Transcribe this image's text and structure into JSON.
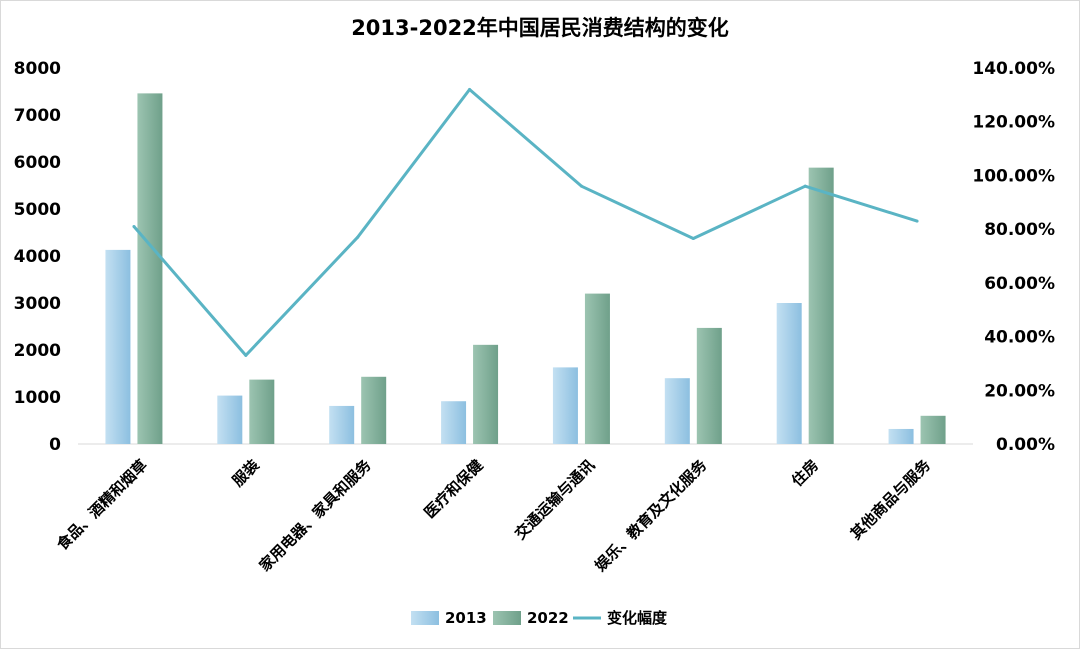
{
  "chart_data": {
    "type": "bar",
    "title": "2013-2022年中国居民消费结构的变化",
    "categories": [
      "食品、酒精和烟草",
      "服装",
      "家用电器、家具和服务",
      "医疗和保健",
      "交通运输与通讯",
      "娱乐、教育及文化服务",
      "住房",
      "其他商品与服务"
    ],
    "series": [
      {
        "name": "2013",
        "type": "bar",
        "axis": "left",
        "color": "#9dc9e6",
        "values": [
          4130,
          1030,
          810,
          910,
          1630,
          1400,
          3000,
          320
        ]
      },
      {
        "name": "2022",
        "type": "bar",
        "axis": "left",
        "color": "#7fae98",
        "values": [
          7460,
          1370,
          1430,
          2110,
          3200,
          2470,
          5880,
          600
        ]
      },
      {
        "name": "变化幅度",
        "type": "line",
        "axis": "right",
        "color": "#5ab4c4",
        "values": [
          0.81,
          0.33,
          0.77,
          1.32,
          0.96,
          0.765,
          0.96,
          0.83
        ]
      }
    ],
    "y_left": {
      "min": 0,
      "max": 8000,
      "ticks": [
        "0",
        "1000",
        "2000",
        "3000",
        "4000",
        "5000",
        "6000",
        "7000",
        "8000"
      ]
    },
    "y_right": {
      "min": 0,
      "max": 1.4,
      "ticks": [
        "0.00%",
        "20.00%",
        "40.00%",
        "60.00%",
        "80.00%",
        "100.00%",
        "120.00%",
        "140.00%"
      ]
    },
    "grid": false,
    "legend": {
      "position": "bottom",
      "labels": [
        "2013",
        "2022",
        "变化幅度"
      ]
    }
  }
}
